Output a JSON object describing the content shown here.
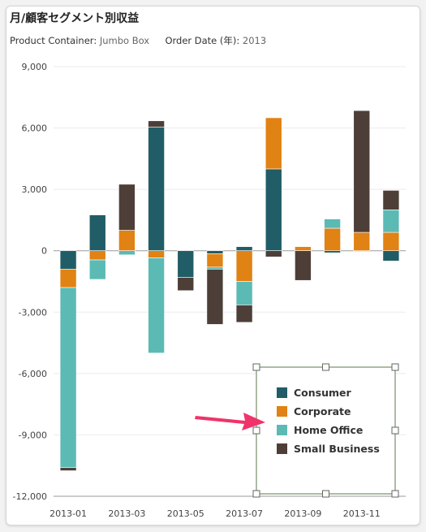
{
  "title": "月/顧客セグメント別収益",
  "filters": [
    {
      "label": "Product Container:",
      "value": "Jumbo Box"
    },
    {
      "label": "Order Date (年):",
      "value": "2013"
    }
  ],
  "chart_data": {
    "type": "bar",
    "stacked": true,
    "categories": [
      "2013-01",
      "2013-02",
      "2013-03",
      "2013-04",
      "2013-05",
      "2013-06",
      "2013-07",
      "2013-08",
      "2013-09",
      "2013-10",
      "2013-11",
      "2013-12"
    ],
    "x_tick_labels": [
      "2013-01",
      "2013-03",
      "2013-05",
      "2013-07",
      "2013-09",
      "2013-11"
    ],
    "y_ticks": [
      9000,
      6000,
      3000,
      0,
      -3000,
      -6000,
      -9000,
      -12000
    ],
    "y_tick_labels": [
      "9,000",
      "6,000",
      "3,000",
      "0",
      "-3,000",
      "-6,000",
      "-9,000",
      "-12,000"
    ],
    "ylim": [
      -12000,
      9000
    ],
    "legend_position": "bottom-right",
    "series": [
      {
        "name": "Consumer",
        "color": "#215d66",
        "values": [
          -900,
          1750,
          0,
          6050,
          -1300,
          -150,
          200,
          4000,
          0,
          -100,
          0,
          -500
        ]
      },
      {
        "name": "Corporate",
        "color": "#e08214",
        "values": [
          -900,
          -450,
          1000,
          -350,
          0,
          -650,
          -1500,
          2500,
          200,
          1100,
          900,
          900
        ]
      },
      {
        "name": "Home Office",
        "color": "#5cbab5",
        "values": [
          -8800,
          -950,
          -200,
          -4650,
          0,
          -100,
          -1150,
          0,
          0,
          450,
          0,
          1100
        ]
      },
      {
        "name": "Small Business",
        "color": "#4d3f38",
        "values": [
          -150,
          0,
          2250,
          300,
          -650,
          -2700,
          -850,
          -300,
          -1450,
          0,
          5950,
          950
        ]
      }
    ]
  }
}
